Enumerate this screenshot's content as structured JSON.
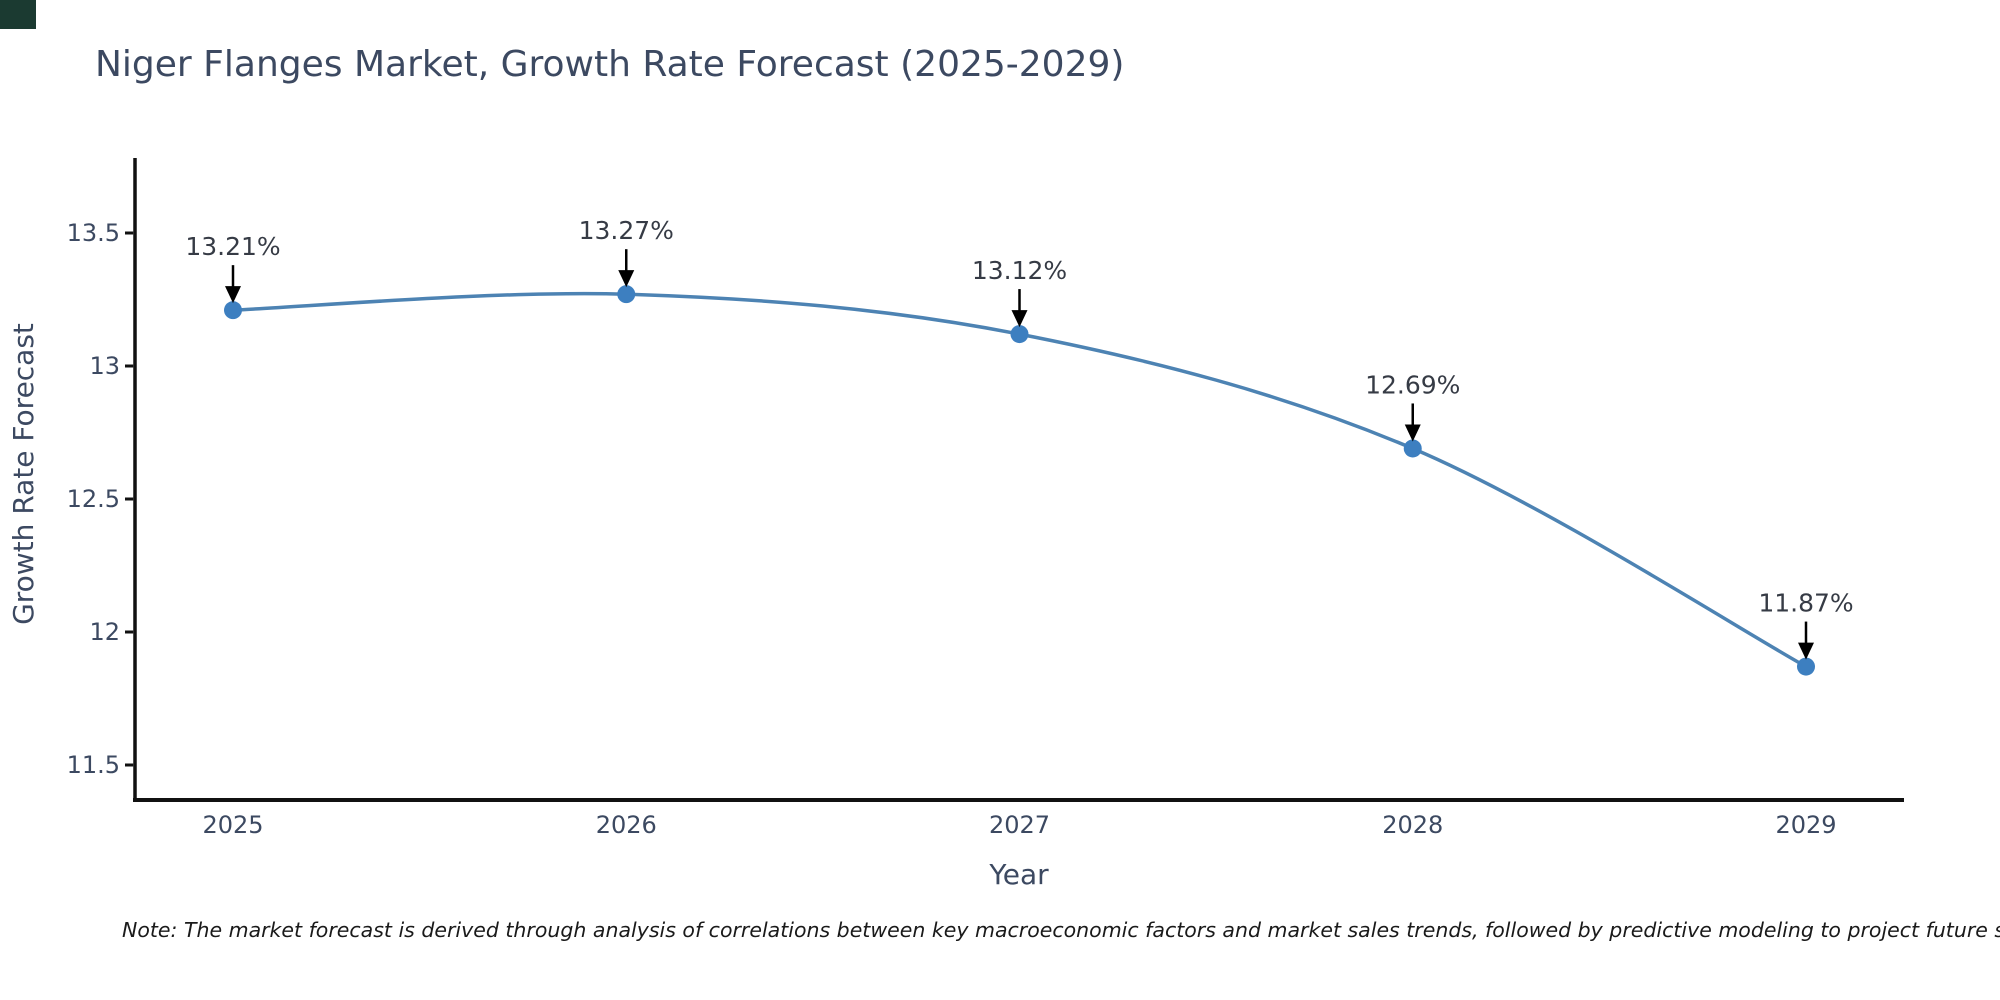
{
  "chart_data": {
    "type": "line",
    "title": "Niger Flanges Market, Growth Rate Forecast (2025-2029)",
    "xlabel": "Year",
    "ylabel": "Growth Rate Forecast",
    "x": [
      2025,
      2026,
      2027,
      2028,
      2029
    ],
    "series": [
      {
        "name": "Growth Rate Forecast",
        "values": [
          13.21,
          13.27,
          13.12,
          12.69,
          11.87
        ],
        "point_labels": [
          "13.21%",
          "13.27%",
          "13.12%",
          "12.69%",
          "11.87%"
        ]
      }
    ],
    "y_ticks": [
      11.5,
      12,
      12.5,
      13,
      13.5
    ],
    "y_tick_labels": [
      "11.5",
      "12",
      "12.5",
      "13",
      "13.5"
    ],
    "x_tick_labels": [
      "2025",
      "2026",
      "2027",
      "2028",
      "2029"
    ],
    "ylim": [
      11.37,
      13.77
    ],
    "grid": false,
    "legend_position": "none",
    "annotations_have_arrows": true
  },
  "colors": {
    "line": "#4d83b3",
    "marker": "#3d7fc0",
    "annotation_arrow": "#000000",
    "annotation_text": "#363b45",
    "axis_text": "#3c4961",
    "title_text": "#3c4961",
    "spine": "#111111",
    "note_text": "#1a1a1a",
    "corner_square": "#1b3a31",
    "background": "#ffffff"
  },
  "note": "Note: The market forecast is derived through analysis of correlations between key macroeconomic factors and market sales trends, followed by predictive modeling to project future sal"
}
